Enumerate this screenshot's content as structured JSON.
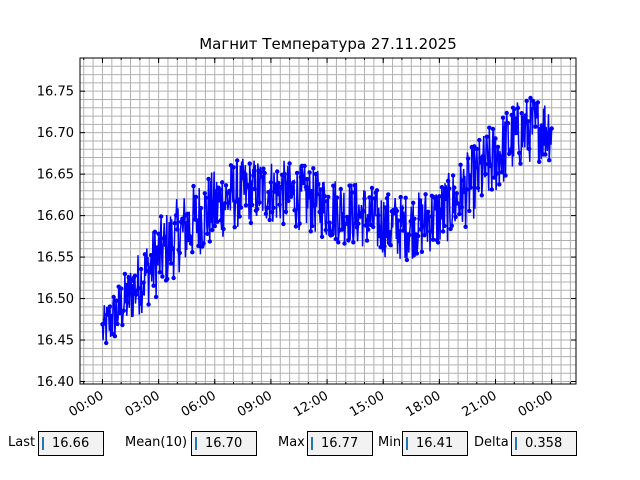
{
  "chart_data": {
    "type": "line",
    "title": "Магнит Температура 27.11.2025",
    "xlabel": "",
    "ylabel": "",
    "x_tick_labels": [
      "00:00",
      "03:00",
      "06:00",
      "09:00",
      "12:00",
      "15:00",
      "18:00",
      "21:00",
      "00:00"
    ],
    "x_tick_hours": [
      0,
      3,
      6,
      9,
      12,
      15,
      18,
      21,
      24
    ],
    "xlim_hours": [
      -1.2,
      25.3
    ],
    "y_ticks": [
      "16.40",
      "16.45",
      "16.50",
      "16.55",
      "16.60",
      "16.65",
      "16.70",
      "16.75"
    ],
    "ylim": [
      16.397,
      16.79
    ],
    "grid": true,
    "series": [
      {
        "color": "#0000ff",
        "marker": "circle",
        "approx_trend": {
          "hours": [
            0,
            1,
            2,
            3,
            4,
            5,
            6,
            7,
            8,
            9,
            10,
            11,
            12,
            13,
            14,
            15,
            16,
            17,
            18,
            19,
            20,
            21,
            22,
            23,
            24
          ],
          "center": [
            16.46,
            16.49,
            16.52,
            16.55,
            16.575,
            16.595,
            16.61,
            16.625,
            16.63,
            16.63,
            16.625,
            16.62,
            16.61,
            16.605,
            16.6,
            16.59,
            16.585,
            16.59,
            16.6,
            16.62,
            16.645,
            16.67,
            16.695,
            16.705,
            16.705
          ],
          "spread": [
            0.05,
            0.06,
            0.07,
            0.08,
            0.08,
            0.08,
            0.08,
            0.075,
            0.07,
            0.07,
            0.07,
            0.07,
            0.07,
            0.07,
            0.07,
            0.07,
            0.07,
            0.07,
            0.07,
            0.075,
            0.08,
            0.08,
            0.075,
            0.07,
            0.07
          ]
        },
        "points_per_hour": 30
      }
    ]
  },
  "stats": {
    "last_label": "Last",
    "last_value": "16.66",
    "mean_label": "Mean(10)",
    "mean_value": "16.70",
    "max_label": "Max",
    "max_value": "16.77",
    "min_label": "Min",
    "min_value": "16.41",
    "delta_label": "Delta",
    "delta_value": "0.358"
  }
}
